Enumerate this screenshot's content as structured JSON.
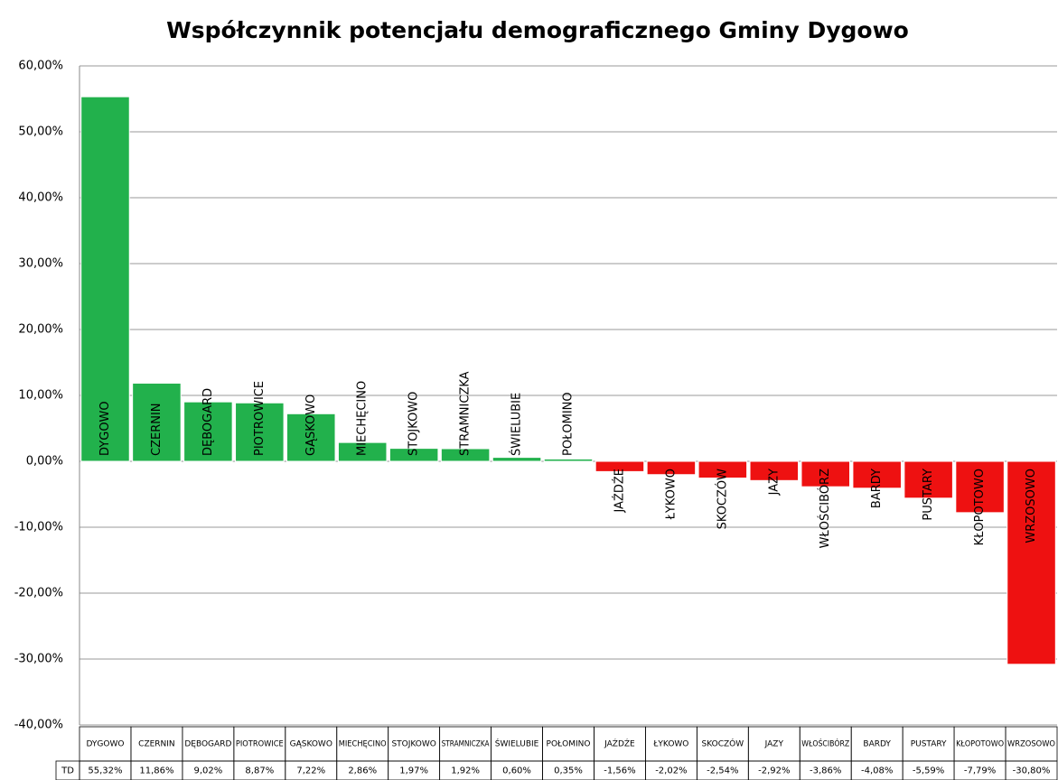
{
  "chart_data": {
    "type": "bar",
    "title": "Współczynnik potencjału demograficznego Gminy Dygowo",
    "categories": [
      "DYGOWO",
      "CZERNIN",
      "DĘBOGARD",
      "PIOTROWICE",
      "GĄSKOWO",
      "MIECHĘCINO",
      "STOJKOWO",
      "STRAMNICZKA",
      "ŚWIELUBIE",
      "POŁOMINO",
      "JAŹDŹE",
      "ŁYKOWO",
      "SKOCZÓW",
      "JAZY",
      "WŁOŚCIBÓRZ",
      "BARDY",
      "PUSTARY",
      "KŁOPOTOWO",
      "WRZOSOWO"
    ],
    "series": [
      {
        "name": "TD",
        "values": [
          55.32,
          11.86,
          9.02,
          8.87,
          7.22,
          2.86,
          1.97,
          1.92,
          0.6,
          0.35,
          -1.56,
          -2.02,
          -2.54,
          -2.92,
          -3.86,
          -4.08,
          -5.59,
          -7.79,
          -30.8
        ],
        "value_labels": [
          "55,32%",
          "11,86%",
          "9,02%",
          "8,87%",
          "7,22%",
          "2,86%",
          "1,97%",
          "1,92%",
          "0,60%",
          "0,35%",
          "-1,56%",
          "-2,02%",
          "-2,54%",
          "-2,92%",
          "-3,86%",
          "-4,08%",
          "-5,59%",
          "-7,79%",
          "-30,80%"
        ],
        "positive_color": "#22b14c",
        "negative_color": "#ee1111"
      }
    ],
    "ylim": [
      -40,
      60
    ],
    "yticks": [
      {
        "value": -40,
        "label": "-40,00%"
      },
      {
        "value": -30,
        "label": "-30,00%"
      },
      {
        "value": -20,
        "label": "-20,00%"
      },
      {
        "value": -10,
        "label": "-10,00%"
      },
      {
        "value": 0,
        "label": "0,00%"
      },
      {
        "value": 10,
        "label": "10,00%"
      },
      {
        "value": 20,
        "label": "20,00%"
      },
      {
        "value": 30,
        "label": "30,00%"
      },
      {
        "value": 40,
        "label": "40,00%"
      },
      {
        "value": 50,
        "label": "50,00%"
      },
      {
        "value": 60,
        "label": "60,00%"
      }
    ],
    "grid": true
  }
}
